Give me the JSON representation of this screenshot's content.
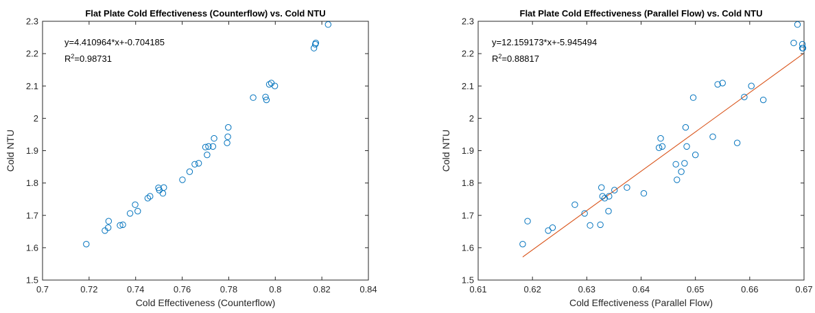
{
  "chart_data": [
    {
      "type": "scatter",
      "title": "Flat Plate Cold Effectiveness (Counterflow) vs. Cold NTU",
      "xlabel": "Cold Effectiveness (Counterflow)",
      "ylabel": "Cold NTU",
      "xlim": [
        0.7,
        0.84
      ],
      "ylim": [
        1.5,
        2.3
      ],
      "xticks": [
        "0.7",
        "0.72",
        "0.74",
        "0.76",
        "0.78",
        "0.8",
        "0.82",
        "0.84"
      ],
      "yticks": [
        "1.5",
        "1.6",
        "1.7",
        "1.8",
        "1.9",
        "2",
        "2.1",
        "2.2",
        "2.3"
      ],
      "grid": false,
      "marker_color": "#0072BD",
      "line_color": "#D95319",
      "fit": {
        "slope": 4.410964,
        "intercept": -0.704185,
        "x_range": [
          0.7188,
          0.8227
        ]
      },
      "annotation": {
        "equation": "y=4.410964*x+-0.704185",
        "r2_prefix": "R",
        "r2_sup": "2",
        "r2_value": "=0.98731"
      },
      "series": [
        {
          "x": [
            0.7188,
            0.7268,
            0.7282,
            0.7284,
            0.7333,
            0.7345,
            0.7376,
            0.7398,
            0.7409,
            0.7452,
            0.7462,
            0.7498,
            0.7502,
            0.7517,
            0.7521,
            0.7601,
            0.7632,
            0.7654,
            0.7671,
            0.77,
            0.7707,
            0.7713,
            0.7732,
            0.7737,
            0.7793,
            0.7796,
            0.7798,
            0.7905,
            0.7958,
            0.7962,
            0.7974,
            0.7983,
            0.7998,
            0.8166,
            0.8172,
            0.8174,
            0.8227
          ],
          "y": [
            1.611,
            1.653,
            1.662,
            1.682,
            1.669,
            1.671,
            1.706,
            1.733,
            1.713,
            1.753,
            1.759,
            1.785,
            1.778,
            1.768,
            1.786,
            1.81,
            1.835,
            1.858,
            1.861,
            1.911,
            1.887,
            1.913,
            1.913,
            1.938,
            1.924,
            1.943,
            1.972,
            2.064,
            2.066,
            2.057,
            2.105,
            2.109,
            2.1,
            2.217,
            2.229,
            2.233,
            2.29
          ]
        }
      ]
    },
    {
      "type": "scatter",
      "title": "Flat Plate Cold Effectiveness (Parallel Flow) vs. Cold NTU",
      "xlabel": "Cold Effectiveness (Parallel Flow)",
      "ylabel": "Cold NTU",
      "xlim": [
        0.61,
        0.67
      ],
      "ylim": [
        1.5,
        2.3
      ],
      "xticks": [
        "0.61",
        "0.62",
        "0.63",
        "0.64",
        "0.65",
        "0.66",
        "0.67"
      ],
      "yticks": [
        "1.5",
        "1.6",
        "1.7",
        "1.8",
        "1.9",
        "2",
        "2.1",
        "2.2",
        "2.3"
      ],
      "grid": false,
      "marker_color": "#0072BD",
      "line_color": "#D95319",
      "fit": {
        "slope": 12.159173,
        "intercept": -5.945494,
        "x_range": [
          0.6182,
          0.6698
        ]
      },
      "annotation": {
        "equation": "y=12.159173*x+-5.945494",
        "r2_prefix": "R",
        "r2_sup": "2",
        "r2_value": "=0.88817"
      },
      "series": [
        {
          "x": [
            0.6182,
            0.6191,
            0.6229,
            0.6237,
            0.6278,
            0.6296,
            0.6306,
            0.6325,
            0.6327,
            0.6329,
            0.6333,
            0.634,
            0.6341,
            0.6351,
            0.6374,
            0.6405,
            0.6433,
            0.6436,
            0.6439,
            0.6464,
            0.6466,
            0.6474,
            0.648,
            0.6482,
            0.6484,
            0.6496,
            0.65,
            0.6532,
            0.6541,
            0.655,
            0.6577,
            0.659,
            0.6603,
            0.6625,
            0.6681,
            0.6688,
            0.6697,
            0.6698,
            0.6697
          ],
          "y": [
            1.611,
            1.682,
            1.653,
            1.662,
            1.733,
            1.706,
            1.669,
            1.671,
            1.786,
            1.759,
            1.753,
            1.713,
            1.759,
            1.778,
            1.786,
            1.768,
            1.909,
            1.938,
            1.913,
            1.858,
            1.81,
            1.835,
            1.861,
            1.972,
            1.913,
            2.064,
            1.887,
            1.943,
            2.105,
            2.109,
            1.924,
            2.066,
            2.1,
            2.057,
            2.233,
            2.29,
            2.229,
            2.217,
            2.217
          ]
        }
      ]
    }
  ]
}
